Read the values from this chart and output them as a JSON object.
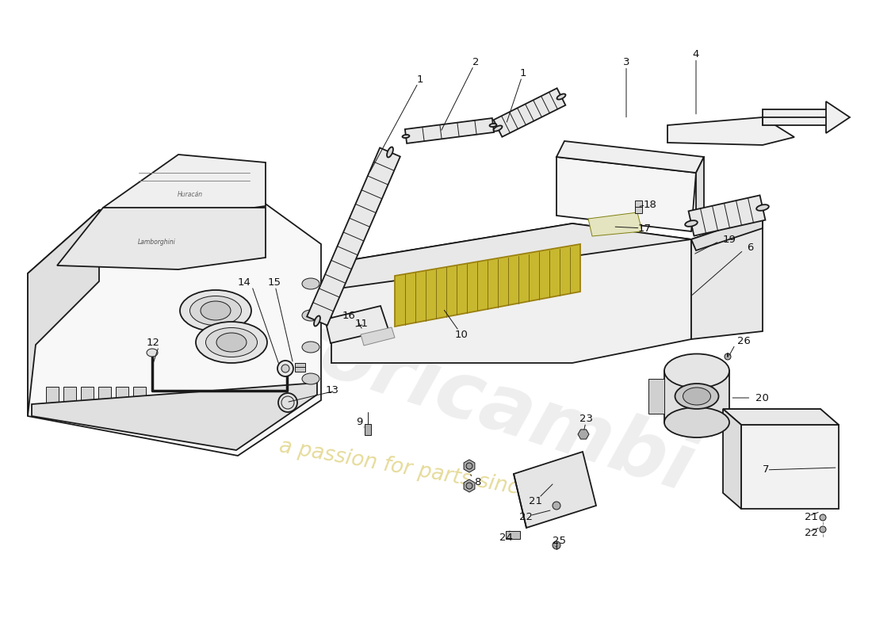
{
  "bg_color": "#ffffff",
  "line_color": "#1a1a1a",
  "fill_light": "#f2f2f2",
  "fill_mid": "#e0e0e0",
  "fill_dark": "#c8c8c8",
  "filter_color": "#c8b830",
  "watermark1": "euroricambi",
  "watermark2": "a passion for parts since 1985",
  "wm1_color": "#c8c8c8",
  "wm2_color": "#c8b020",
  "lw_main": 1.3,
  "lw_thin": 0.7,
  "lw_thick": 2.5,
  "labels": [
    [
      530,
      100,
      "1",
      465,
      220,
      "center"
    ],
    [
      660,
      92,
      "1",
      638,
      158,
      "center"
    ],
    [
      600,
      78,
      "2",
      555,
      168,
      "center"
    ],
    [
      790,
      78,
      "3",
      790,
      152,
      "center"
    ],
    [
      878,
      68,
      "4",
      878,
      148,
      "center"
    ],
    [
      942,
      312,
      "6",
      870,
      375,
      "left"
    ],
    [
      962,
      593,
      "7",
      1058,
      590,
      "left"
    ],
    [
      598,
      608,
      "8",
      592,
      595,
      "left"
    ],
    [
      453,
      533,
      "9",
      462,
      542,
      "center"
    ],
    [
      582,
      422,
      "10",
      558,
      388,
      "center"
    ],
    [
      465,
      408,
      "11",
      445,
      413,
      "right"
    ],
    [
      202,
      432,
      "12",
      192,
      462,
      "right"
    ],
    [
      428,
      492,
      "13",
      360,
      508,
      "right"
    ],
    [
      316,
      356,
      "14",
      353,
      463,
      "right"
    ],
    [
      346,
      356,
      "15",
      370,
      460,
      "center"
    ],
    [
      448,
      398,
      "16",
      458,
      418,
      "right"
    ],
    [
      813,
      288,
      "17",
      772,
      286,
      "center"
    ],
    [
      820,
      258,
      "18",
      803,
      261,
      "center"
    ],
    [
      912,
      302,
      "19",
      873,
      322,
      "left"
    ],
    [
      953,
      502,
      "20",
      920,
      502,
      "left"
    ],
    [
      676,
      632,
      "21",
      700,
      608,
      "center"
    ],
    [
      1015,
      653,
      "21",
      1036,
      645,
      "left"
    ],
    [
      663,
      652,
      "22",
      698,
      643,
      "center"
    ],
    [
      1015,
      673,
      "22",
      1036,
      665,
      "left"
    ],
    [
      740,
      528,
      "23",
      736,
      546,
      "center"
    ],
    [
      638,
      678,
      "24",
      643,
      670,
      "center"
    ],
    [
      705,
      682,
      "25",
      701,
      690,
      "center"
    ],
    [
      930,
      430,
      "26",
      918,
      452,
      "left"
    ]
  ]
}
